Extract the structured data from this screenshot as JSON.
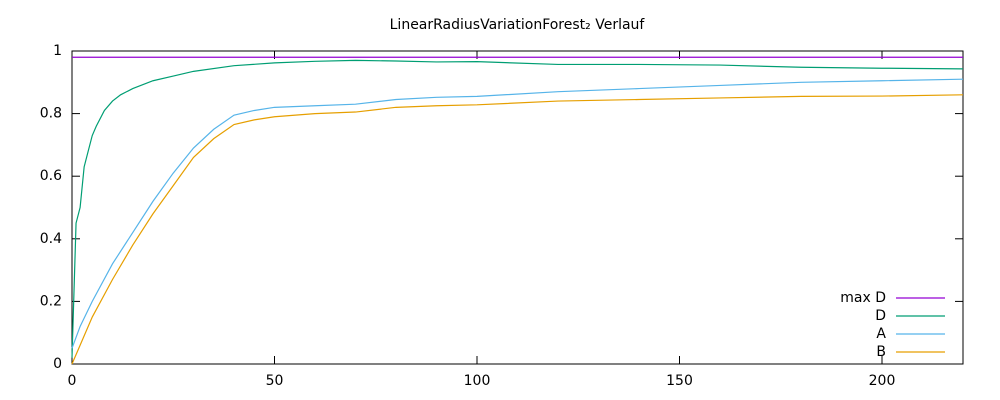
{
  "chart_data": {
    "type": "line",
    "title": "LinearRadiusVariationForest₂ Verlauf",
    "xlim": [
      0,
      220
    ],
    "ylim": [
      0,
      1
    ],
    "xticks": [
      0,
      50,
      100,
      150,
      200
    ],
    "yticks": [
      0,
      0.2,
      0.4,
      0.6,
      0.8,
      1
    ],
    "grid": false,
    "legend": "bottom-right",
    "series": [
      {
        "name": "max D",
        "color": "#9400d3",
        "x": [
          0,
          220
        ],
        "values": [
          0.98,
          0.98
        ]
      },
      {
        "name": "D",
        "color": "#009e73",
        "x": [
          0,
          1,
          2,
          3,
          4,
          5,
          6,
          8,
          10,
          12,
          15,
          20,
          25,
          30,
          40,
          50,
          60,
          70,
          80,
          90,
          100,
          120,
          140,
          160,
          180,
          200,
          220
        ],
        "values": [
          0.02,
          0.45,
          0.5,
          0.63,
          0.68,
          0.73,
          0.76,
          0.81,
          0.84,
          0.86,
          0.88,
          0.905,
          0.92,
          0.935,
          0.953,
          0.962,
          0.967,
          0.97,
          0.968,
          0.965,
          0.966,
          0.957,
          0.957,
          0.955,
          0.948,
          0.945,
          0.943
        ]
      },
      {
        "name": "A",
        "color": "#56b4e9",
        "x": [
          0,
          2,
          5,
          10,
          15,
          20,
          25,
          30,
          35,
          40,
          45,
          50,
          60,
          70,
          80,
          90,
          100,
          120,
          140,
          160,
          180,
          200,
          220
        ],
        "values": [
          0.05,
          0.12,
          0.2,
          0.32,
          0.42,
          0.52,
          0.61,
          0.69,
          0.75,
          0.795,
          0.81,
          0.82,
          0.825,
          0.83,
          0.845,
          0.852,
          0.855,
          0.87,
          0.88,
          0.89,
          0.9,
          0.905,
          0.91
        ]
      },
      {
        "name": "B",
        "color": "#e69f00",
        "x": [
          0,
          2,
          5,
          10,
          15,
          20,
          25,
          30,
          35,
          40,
          45,
          50,
          60,
          70,
          80,
          90,
          100,
          120,
          140,
          160,
          180,
          200,
          220
        ],
        "values": [
          0,
          0.06,
          0.15,
          0.27,
          0.38,
          0.48,
          0.57,
          0.66,
          0.72,
          0.765,
          0.78,
          0.79,
          0.8,
          0.805,
          0.82,
          0.825,
          0.828,
          0.84,
          0.845,
          0.85,
          0.855,
          0.856,
          0.86
        ]
      }
    ]
  }
}
